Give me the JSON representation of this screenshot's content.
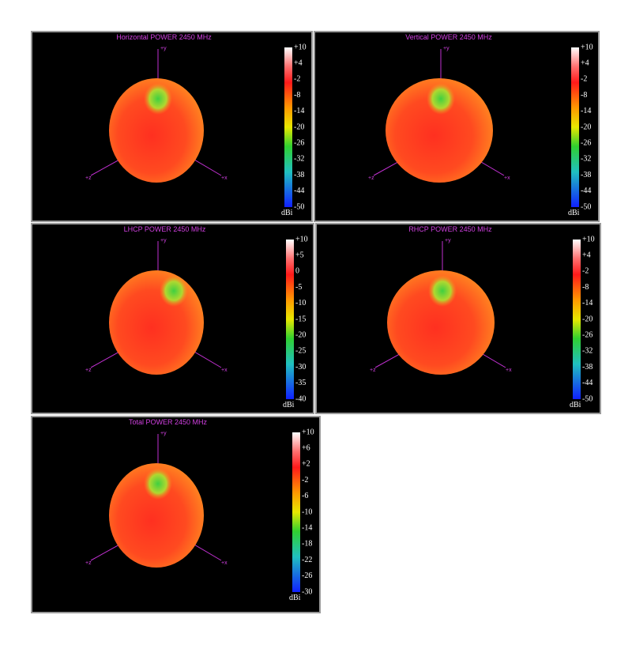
{
  "panels": [
    {
      "title": "Horizontal POWER 2450  MHz",
      "axis_labels": [
        "+y",
        "+z",
        "+x"
      ],
      "colorbar": {
        "ticks": [
          "+10",
          "+4",
          "-2",
          "-8",
          "-14",
          "-20",
          "-26",
          "-32",
          "-38",
          "-44",
          "-50"
        ],
        "unit": "dBi"
      }
    },
    {
      "title": "Vertical POWER 2450  MHz",
      "axis_labels": [
        "+y",
        "+z",
        "+x"
      ],
      "colorbar": {
        "ticks": [
          "+10",
          "+4",
          "-2",
          "-8",
          "-14",
          "-20",
          "-26",
          "-32",
          "-38",
          "-44",
          "-50"
        ],
        "unit": "dBi"
      }
    },
    {
      "title": "LHCP POWER 2450  MHz",
      "axis_labels": [
        "+y",
        "+z",
        "+x"
      ],
      "colorbar": {
        "ticks": [
          "+10",
          "+5",
          "0",
          "-5",
          "-10",
          "-15",
          "-20",
          "-25",
          "-30",
          "-35",
          "-40"
        ],
        "unit": "dBi"
      }
    },
    {
      "title": "RHCP POWER 2450  MHz",
      "axis_labels": [
        "+y",
        "+z",
        "+x"
      ],
      "colorbar": {
        "ticks": [
          "+10",
          "+4",
          "-2",
          "-8",
          "-14",
          "-20",
          "-26",
          "-32",
          "-38",
          "-44",
          "-50"
        ],
        "unit": "dBi"
      }
    },
    {
      "title": "Total POWER 2450  MHz",
      "axis_labels": [
        "+y",
        "+z",
        "+x"
      ],
      "colorbar": {
        "ticks": [
          "+10",
          "+6",
          "+2",
          "-2",
          "-6",
          "-10",
          "-14",
          "-18",
          "-22",
          "-26",
          "-30"
        ],
        "unit": "dBi"
      }
    }
  ]
}
